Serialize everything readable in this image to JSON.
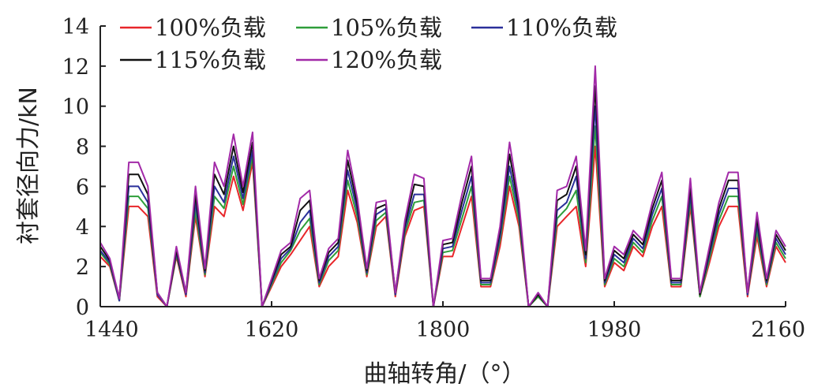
{
  "chart_data": {
    "type": "line",
    "xlabel": "曲轴转角/（°）",
    "ylabel": "衬套径向力/kN",
    "xlim": [
      1440,
      2160
    ],
    "ylim": [
      0,
      14
    ],
    "xticks": [
      1440,
      1620,
      1800,
      1980,
      2160
    ],
    "yticks": [
      0,
      2,
      4,
      6,
      8,
      10,
      12,
      14
    ],
    "xtick_labels": [
      "1440",
      "1620",
      "1800",
      "1980",
      "2160"
    ],
    "ytick_labels": [
      "0",
      "2",
      "4",
      "6",
      "8",
      "10",
      "12",
      "14"
    ],
    "grid": false,
    "legend_position": "top-left",
    "x": [
      1440,
      1450,
      1460,
      1470,
      1480,
      1490,
      1500,
      1510,
      1520,
      1530,
      1540,
      1550,
      1560,
      1570,
      1580,
      1590,
      1600,
      1610,
      1620,
      1630,
      1640,
      1650,
      1660,
      1670,
      1680,
      1690,
      1700,
      1710,
      1720,
      1730,
      1740,
      1750,
      1760,
      1770,
      1780,
      1790,
      1800,
      1810,
      1820,
      1830,
      1840,
      1850,
      1860,
      1870,
      1880,
      1890,
      1900,
      1910,
      1920,
      1930,
      1940,
      1950,
      1960,
      1970,
      1980,
      1990,
      2000,
      2010,
      2020,
      2030,
      2040,
      2050,
      2060,
      2070,
      2080,
      2090,
      2100,
      2110,
      2120,
      2130,
      2140,
      2150,
      2160
    ],
    "series": [
      {
        "name": "100%负载",
        "color": "#e8262a",
        "values": [
          2.5,
          2.0,
          0.3,
          5.0,
          5.0,
          4.5,
          0.5,
          0.0,
          2.5,
          0.5,
          4.5,
          1.5,
          5.0,
          4.5,
          6.5,
          4.8,
          7.2,
          0.0,
          1.0,
          2.0,
          2.6,
          3.3,
          4.0,
          1.0,
          2.0,
          2.5,
          5.8,
          4.2,
          1.5,
          4.0,
          4.5,
          0.5,
          3.5,
          4.8,
          5.0,
          0.0,
          2.5,
          2.5,
          4.0,
          5.5,
          1.0,
          1.0,
          3.0,
          6.0,
          4.0,
          0.0,
          0.5,
          0.0,
          4.0,
          4.5,
          5.0,
          2.0,
          8.0,
          1.0,
          2.2,
          1.8,
          3.0,
          2.5,
          4.0,
          5.0,
          1.0,
          1.0,
          5.0,
          0.5,
          2.2,
          4.0,
          5.0,
          5.0,
          0.5,
          3.5,
          1.0,
          3.0,
          2.2
        ]
      },
      {
        "name": "105%负载",
        "color": "#2e9e3a",
        "values": [
          2.7,
          2.1,
          0.3,
          5.5,
          5.5,
          4.9,
          0.6,
          0.0,
          2.6,
          0.6,
          4.8,
          1.6,
          5.5,
          4.9,
          7.0,
          5.1,
          7.5,
          0.0,
          1.1,
          2.2,
          2.8,
          3.8,
          4.4,
          1.1,
          2.3,
          2.8,
          6.3,
          4.5,
          1.6,
          4.3,
          4.7,
          0.6,
          3.7,
          5.2,
          5.3,
          0.0,
          2.7,
          2.8,
          4.4,
          6.0,
          1.1,
          1.1,
          3.3,
          6.5,
          4.3,
          0.0,
          0.5,
          0.0,
          4.4,
          4.9,
          5.8,
          2.2,
          9.0,
          1.1,
          2.4,
          2.0,
          3.2,
          2.7,
          4.3,
          5.5,
          1.1,
          1.1,
          5.3,
          0.5,
          2.4,
          4.3,
          5.5,
          5.5,
          0.6,
          3.8,
          1.1,
          3.2,
          2.4
        ]
      },
      {
        "name": "110%负载",
        "color": "#2a2f9a",
        "values": [
          2.8,
          2.2,
          0.3,
          6.0,
          6.0,
          5.2,
          0.6,
          0.0,
          2.7,
          0.6,
          5.2,
          1.7,
          6.0,
          5.2,
          7.5,
          5.4,
          7.8,
          0.0,
          1.2,
          2.4,
          2.9,
          4.2,
          4.8,
          1.2,
          2.5,
          3.0,
          6.8,
          4.8,
          1.7,
          4.6,
          4.9,
          0.6,
          3.9,
          5.6,
          5.6,
          0.0,
          2.9,
          3.0,
          4.8,
          6.5,
          1.2,
          1.2,
          3.5,
          7.0,
          4.6,
          0.0,
          0.6,
          0.0,
          4.8,
          5.2,
          6.5,
          2.4,
          10.0,
          1.2,
          2.6,
          2.2,
          3.4,
          2.9,
          4.6,
          5.9,
          1.2,
          1.2,
          5.6,
          0.6,
          2.6,
          4.6,
          5.9,
          5.9,
          0.6,
          4.1,
          1.2,
          3.4,
          2.6
        ]
      },
      {
        "name": "115%负载",
        "color": "#111111",
        "values": [
          3.0,
          2.3,
          0.4,
          6.6,
          6.6,
          5.6,
          0.7,
          0.0,
          2.8,
          0.7,
          5.6,
          1.8,
          6.6,
          5.6,
          8.0,
          5.7,
          8.2,
          0.0,
          1.3,
          2.6,
          3.0,
          4.8,
          5.3,
          1.3,
          2.7,
          3.2,
          7.3,
          5.1,
          1.8,
          4.9,
          5.1,
          0.7,
          4.1,
          6.1,
          6.0,
          0.0,
          3.1,
          3.2,
          5.2,
          7.0,
          1.3,
          1.3,
          3.8,
          7.6,
          4.9,
          0.0,
          0.6,
          0.0,
          5.3,
          5.6,
          7.0,
          2.6,
          11.0,
          1.3,
          2.8,
          2.4,
          3.6,
          3.1,
          4.9,
          6.3,
          1.3,
          1.3,
          6.0,
          0.6,
          2.8,
          4.9,
          6.3,
          6.3,
          0.7,
          4.4,
          1.3,
          3.6,
          2.8
        ]
      },
      {
        "name": "120%负载",
        "color": "#a22aa8",
        "values": [
          3.2,
          2.4,
          0.4,
          7.2,
          7.2,
          6.0,
          0.7,
          0.0,
          3.0,
          0.7,
          6.0,
          1.9,
          7.2,
          6.0,
          8.6,
          6.0,
          8.7,
          0.0,
          1.4,
          2.8,
          3.2,
          5.4,
          5.8,
          1.4,
          2.9,
          3.4,
          7.8,
          5.4,
          1.9,
          5.2,
          5.3,
          0.7,
          4.3,
          6.6,
          6.4,
          0.0,
          3.3,
          3.4,
          5.6,
          7.5,
          1.4,
          1.4,
          4.0,
          8.2,
          5.2,
          0.0,
          0.7,
          0.0,
          5.8,
          6.0,
          7.5,
          2.8,
          12.0,
          1.4,
          3.0,
          2.6,
          3.8,
          3.3,
          5.2,
          6.7,
          1.4,
          1.4,
          6.4,
          0.7,
          3.0,
          5.2,
          6.7,
          6.7,
          0.7,
          4.7,
          1.4,
          3.8,
          3.0
        ]
      }
    ]
  }
}
